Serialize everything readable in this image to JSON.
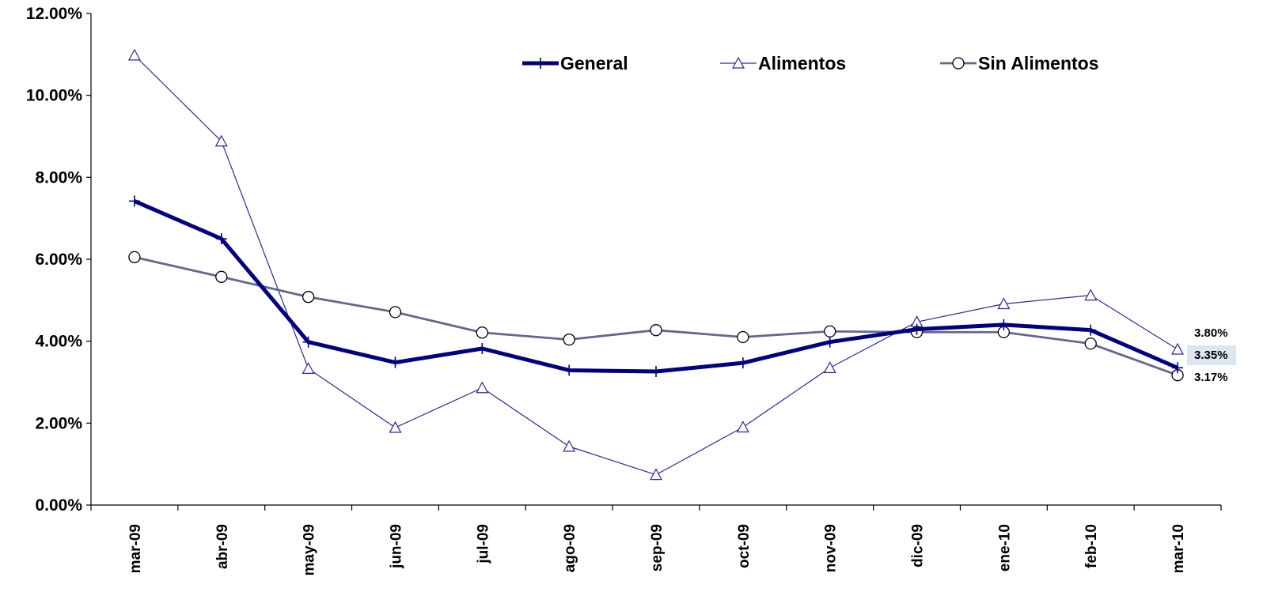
{
  "chart_data": {
    "type": "line",
    "categories": [
      "mar-09",
      "abr-09",
      "may-09",
      "jun-09",
      "jul-09",
      "ago-09",
      "sep-09",
      "oct-09",
      "nov-09",
      "dic-09",
      "ene-10",
      "feb-10",
      "mar-10"
    ],
    "ylim": [
      0,
      12
    ],
    "yticks": [
      "0.00%",
      "2.00%",
      "4.00%",
      "6.00%",
      "8.00%",
      "10.00%",
      "12.00%"
    ],
    "grid": false,
    "legend_position": "top",
    "series": [
      {
        "name": "General",
        "color": "#000080",
        "marker": "plus",
        "values": [
          7.42,
          6.5,
          3.98,
          3.48,
          3.82,
          3.29,
          3.26,
          3.47,
          3.98,
          4.29,
          4.4,
          4.27,
          3.35
        ]
      },
      {
        "name": "Alimentos",
        "color": "#2A2A9A",
        "marker": "triangle",
        "values": [
          10.98,
          8.88,
          3.33,
          1.89,
          2.86,
          1.43,
          0.74,
          1.9,
          3.35,
          4.47,
          4.91,
          5.12,
          3.8
        ]
      },
      {
        "name": "Sin Alimentos",
        "color": "#66668F",
        "marker": "circle",
        "values": [
          6.05,
          5.57,
          5.08,
          4.71,
          4.21,
          4.04,
          4.27,
          4.1,
          4.24,
          4.22,
          4.22,
          3.94,
          3.17
        ]
      }
    ],
    "end_labels": [
      {
        "text": "3.80%"
      },
      {
        "text": "3.35%",
        "highlight": "#DCE6F1"
      },
      {
        "text": "3.17%"
      }
    ]
  }
}
